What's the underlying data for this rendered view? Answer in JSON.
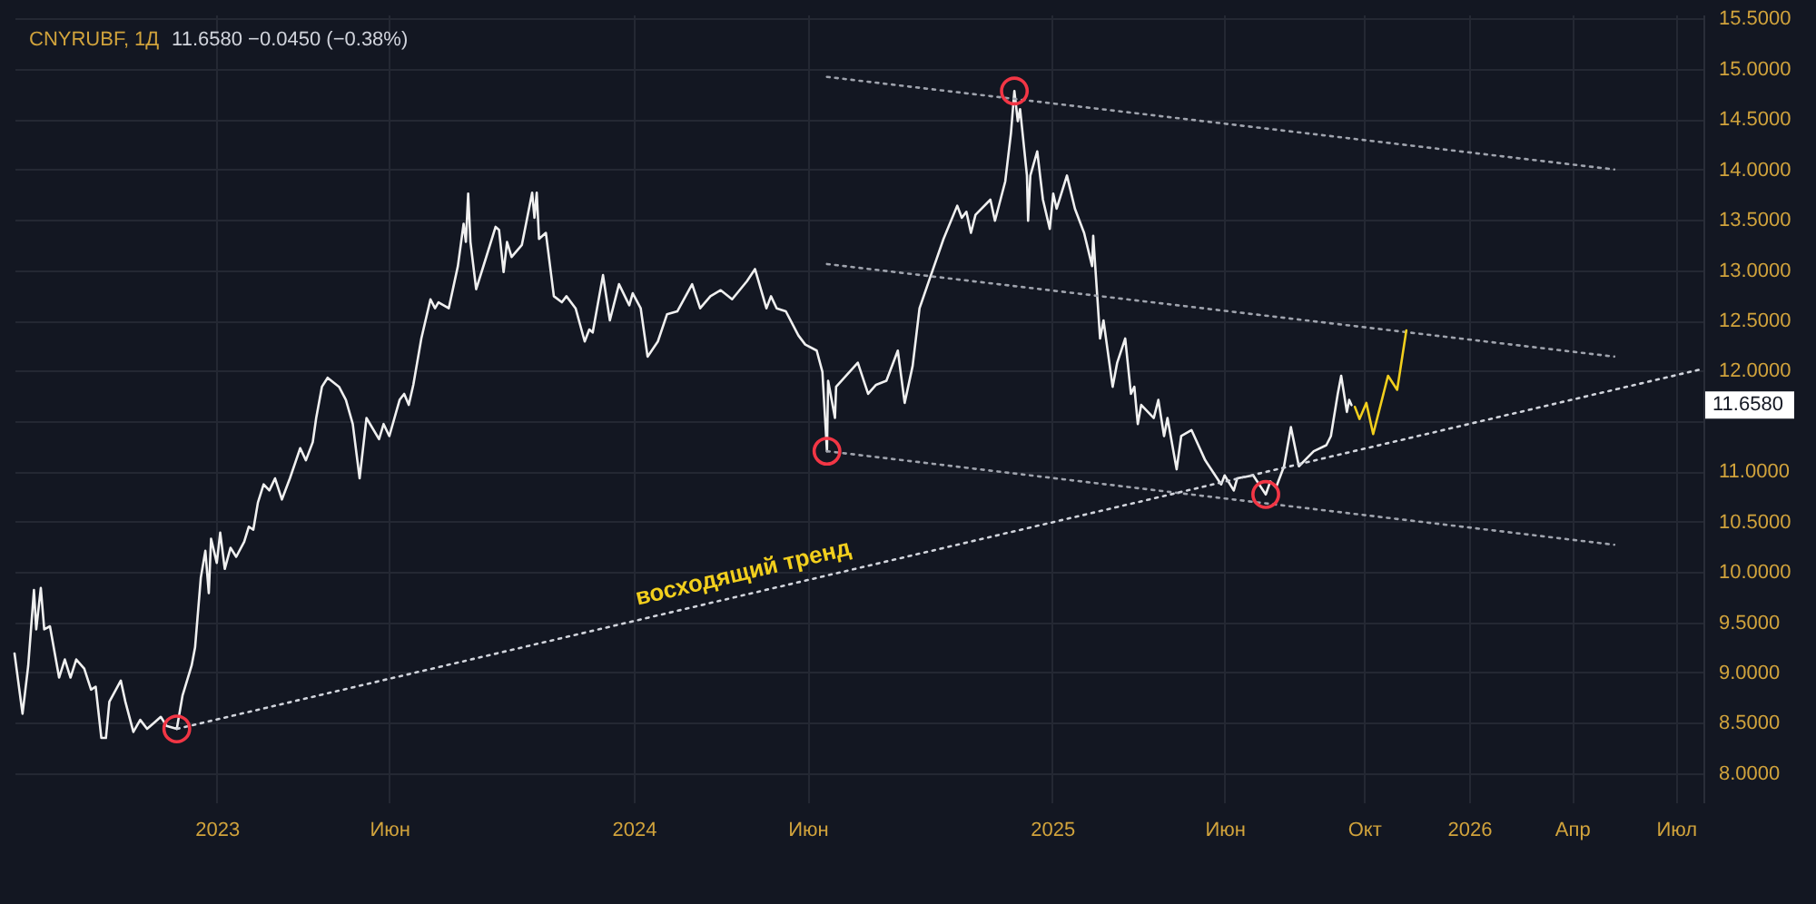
{
  "chart_data": {
    "type": "line",
    "title": "CNYRUBF, 1Д",
    "subtitle": "11.6580 −0.0450 (−0.38%)",
    "annotations": [
      {
        "text": "восходящий тренд",
        "x": "2024-04-10",
        "y": 9.78
      },
      "11.6580"
    ],
    "series": [
      {
        "color": "#f0f0f0",
        "x": [
          "2022-07-08",
          "2022-07-15",
          "2022-07-20",
          "2022-07-25",
          "2022-07-27",
          "2022-07-31",
          "2022-08-03",
          "2022-08-08",
          "2022-08-16",
          "2022-08-21",
          "2022-08-26",
          "2022-08-31",
          "2022-09-07",
          "2022-09-13",
          "2022-09-17",
          "2022-09-22",
          "2022-09-26",
          "2022-09-29",
          "2022-10-09",
          "2022-10-13",
          "2022-10-20",
          "2022-10-26",
          "2022-11-01",
          "2022-11-07",
          "2022-11-13",
          "2022-11-18",
          "2022-11-27",
          "2022-12-02",
          "2022-12-10",
          "2022-12-13",
          "2022-12-18",
          "2022-12-22",
          "2022-12-25",
          "2022-12-27",
          "2023-01-01",
          "2023-01-04",
          "2023-01-08",
          "2023-01-13",
          "2023-01-18",
          "2023-01-25",
          "2023-01-29",
          "2023-02-02",
          "2023-02-06",
          "2023-02-11",
          "2023-02-16",
          "2023-02-21",
          "2023-02-27",
          "2023-03-06",
          "2023-03-15",
          "2023-03-20",
          "2023-03-26",
          "2023-03-29",
          "2023-04-03",
          "2023-04-08",
          "2023-04-18",
          "2023-04-24",
          "2023-04-30",
          "2023-05-06",
          "2023-05-09",
          "2023-05-12",
          "2023-05-23",
          "2023-05-27",
          "2023-06-01",
          "2023-06-10",
          "2023-06-14",
          "2023-06-18",
          "2023-06-22",
          "2023-06-29",
          "2023-07-07",
          "2023-07-11",
          "2023-07-14",
          "2023-07-23",
          "2023-07-31",
          "2023-08-05",
          "2023-08-07",
          "2023-08-09",
          "2023-08-11",
          "2023-08-16",
          "2023-08-24",
          "2023-09-02",
          "2023-09-05",
          "2023-09-09",
          "2023-09-12",
          "2023-09-16",
          "2023-09-25",
          "2023-10-04",
          "2023-10-06",
          "2023-10-08",
          "2023-10-10",
          "2023-10-16",
          "2023-10-23",
          "2023-10-30",
          "2023-11-03",
          "2023-11-11",
          "2023-11-19",
          "2023-11-23",
          "2023-11-26",
          "2023-12-05",
          "2023-12-11",
          "2023-12-19",
          "2023-12-28",
          "2023-12-31",
          "2024-01-07",
          "2024-01-13",
          "2024-01-22",
          "2024-01-30",
          "2024-02-08",
          "2024-02-21",
          "2024-02-28",
          "2024-03-08",
          "2024-03-17",
          "2024-03-27",
          "2024-04-09",
          "2024-04-16",
          "2024-04-26",
          "2024-04-30",
          "2024-05-05",
          "2024-05-13",
          "2024-05-24",
          "2024-05-30",
          "2024-06-09",
          "2024-06-14",
          "2024-06-18",
          "2024-06-19",
          "2024-06-25",
          "2024-06-26",
          "2024-07-15",
          "2024-07-24",
          "2024-07-31",
          "2024-08-09",
          "2024-08-19",
          "2024-08-25",
          "2024-09-01",
          "2024-09-07",
          "2024-09-17",
          "2024-09-28",
          "2024-10-10",
          "2024-10-14",
          "2024-10-18",
          "2024-10-22",
          "2024-10-26",
          "2024-11-08",
          "2024-11-12",
          "2024-11-21",
          "2024-11-26",
          "2024-11-29",
          "2024-12-02",
          "2024-12-04",
          "2024-12-10",
          "2024-12-11",
          "2024-12-13",
          "2024-12-19",
          "2024-12-24",
          "2024-12-30",
          "2025-01-02",
          "2025-01-05",
          "2025-01-14",
          "2025-01-21",
          "2025-01-29",
          "2025-02-05",
          "2025-02-06",
          "2025-02-12",
          "2025-02-15",
          "2025-02-23",
          "2025-02-27",
          "2025-03-06",
          "2025-03-11",
          "2025-03-14",
          "2025-03-17",
          "2025-03-20",
          "2025-03-31",
          "2025-04-04",
          "2025-04-09",
          "2025-04-12",
          "2025-04-20",
          "2025-04-24",
          "2025-05-03",
          "2025-05-15",
          "2025-05-29",
          "2025-06-01",
          "2025-06-09",
          "2025-06-12",
          "2025-06-26",
          "2025-07-07",
          "2025-07-11",
          "2025-07-16",
          "2025-07-23",
          "2025-07-29",
          "2025-08-05",
          "2025-08-18",
          "2025-08-29",
          "2025-09-02",
          "2025-09-08",
          "2025-09-11",
          "2025-09-16",
          "2025-09-18",
          "2025-09-20"
        ],
        "values": [
          9.19,
          8.59,
          9.07,
          9.82,
          9.43,
          9.84,
          9.43,
          9.46,
          8.95,
          9.13,
          8.95,
          9.13,
          9.04,
          8.83,
          8.86,
          8.35,
          8.35,
          8.71,
          8.92,
          8.71,
          8.41,
          8.53,
          8.44,
          8.5,
          8.56,
          8.47,
          8.44,
          8.77,
          9.07,
          9.25,
          9.94,
          10.21,
          9.79,
          10.33,
          10.09,
          10.39,
          10.03,
          10.24,
          10.15,
          10.3,
          10.45,
          10.42,
          10.69,
          10.87,
          10.81,
          10.93,
          10.72,
          10.93,
          11.23,
          11.11,
          11.29,
          11.53,
          11.84,
          11.93,
          11.84,
          11.71,
          11.47,
          10.93,
          11.23,
          11.53,
          11.32,
          11.47,
          11.35,
          11.71,
          11.77,
          11.66,
          11.86,
          12.32,
          12.71,
          12.62,
          12.68,
          12.62,
          13.04,
          13.46,
          13.28,
          13.76,
          13.28,
          12.81,
          13.1,
          13.43,
          13.4,
          12.98,
          13.28,
          13.13,
          13.25,
          13.77,
          13.52,
          13.77,
          13.31,
          13.37,
          12.74,
          12.68,
          12.74,
          12.62,
          12.29,
          12.41,
          12.38,
          12.95,
          12.5,
          12.86,
          12.65,
          12.77,
          12.62,
          12.14,
          12.29,
          12.56,
          12.59,
          12.86,
          12.62,
          12.74,
          12.8,
          12.71,
          12.89,
          13.01,
          12.62,
          12.74,
          12.62,
          12.59,
          12.35,
          12.26,
          12.2,
          11.99,
          11.2,
          11.9,
          11.53,
          11.84,
          12.08,
          11.77,
          11.86,
          11.9,
          12.2,
          11.68,
          12.05,
          12.62,
          12.95,
          13.31,
          13.64,
          13.52,
          13.58,
          13.37,
          13.55,
          13.7,
          13.49,
          13.88,
          14.36,
          14.78,
          14.48,
          14.6,
          13.94,
          13.49,
          13.94,
          14.18,
          13.7,
          13.41,
          13.76,
          13.61,
          13.94,
          13.61,
          13.37,
          13.04,
          13.34,
          12.32,
          12.5,
          11.84,
          12.08,
          12.32,
          11.77,
          11.84,
          11.47,
          11.66,
          11.53,
          11.71,
          11.35,
          11.53,
          11.02,
          11.35,
          11.41,
          11.11,
          10.87,
          10.96,
          10.81,
          10.93,
          10.96,
          10.77,
          10.9,
          10.84,
          11.05,
          11.44,
          11.05,
          11.2,
          11.26,
          11.35,
          11.77,
          11.95,
          11.59,
          11.71,
          11.658
        ]
      },
      {
        "color": "#9fa3ad",
        "line_style": "dotted",
        "x": [
          "2024-06-18",
          "2026-05-08"
        ],
        "values": [
          14.92,
          14.0
        ]
      },
      {
        "color": "#9fa3ad",
        "line_style": "dotted",
        "x": [
          "2024-06-18",
          "2026-05-08"
        ],
        "values": [
          13.06,
          12.14
        ]
      },
      {
        "color": "#9fa3ad",
        "line_style": "dotted",
        "x": [
          "2024-06-18",
          "2026-05-08"
        ],
        "values": [
          11.2,
          10.27
        ]
      },
      {
        "color": "#d1d4dc",
        "line_style": "dotted",
        "x": [
          "2022-11-27",
          "2026-07-25"
        ],
        "values": [
          8.44,
          12.02
        ]
      },
      {
        "color": "#f2cf1d",
        "x": [
          "2025-09-23",
          "2025-09-27",
          "2025-10-03",
          "2025-10-09",
          "2025-10-22",
          "2025-10-30",
          "2025-11-07"
        ],
        "values": [
          11.64,
          11.52,
          11.68,
          11.37,
          11.95,
          11.81,
          12.4
        ]
      },
      {
        "type": "scatter",
        "color": "#f23645",
        "marker": "circle",
        "x": [
          "2022-11-27",
          "2024-06-18",
          "2024-11-29",
          "2025-07-07"
        ],
        "values": [
          8.44,
          11.2,
          14.78,
          10.77
        ]
      }
    ],
    "xlim": [
      "2022-07-08",
      "2026-07-25"
    ],
    "xticks": [
      {
        "value": "2023-01-01",
        "label": "2023"
      },
      {
        "value": "2023-06-01",
        "label": "Июн"
      },
      {
        "value": "2024-01-01",
        "label": "2024"
      },
      {
        "value": "2024-06-01",
        "label": "Июн"
      },
      {
        "value": "2025-01-01",
        "label": "2025"
      },
      {
        "value": "2025-06-01",
        "label": "Июн"
      },
      {
        "value": "2025-10-01",
        "label": "Окт"
      },
      {
        "value": "2026-01-01",
        "label": "2026"
      },
      {
        "value": "2026-04-01",
        "label": "Апр"
      },
      {
        "value": "2026-07-01",
        "label": "Июл"
      }
    ],
    "ylim": [
      7.71,
      15.54
    ],
    "yticks": [
      {
        "value": 8,
        "label": "8.0000"
      },
      {
        "value": 8.5,
        "label": "8.5000"
      },
      {
        "value": 9,
        "label": "9.0000"
      },
      {
        "value": 9.5,
        "label": "9.5000"
      },
      {
        "value": 10,
        "label": "10.0000"
      },
      {
        "value": 10.5,
        "label": "10.5000"
      },
      {
        "value": 11,
        "label": "11.0000"
      },
      {
        "value": 11.5,
        "label": null
      },
      {
        "value": 12,
        "label": "12.0000"
      },
      {
        "value": 12.5,
        "label": "12.5000"
      },
      {
        "value": 13,
        "label": "13.0000"
      },
      {
        "value": 13.5,
        "label": "13.5000"
      },
      {
        "value": 14,
        "label": "14.0000"
      },
      {
        "value": 14.5,
        "label": "14.5000"
      },
      {
        "value": 15,
        "label": "15.0000"
      },
      {
        "value": 15.5,
        "label": "15.5000"
      }
    ],
    "grid": true
  }
}
